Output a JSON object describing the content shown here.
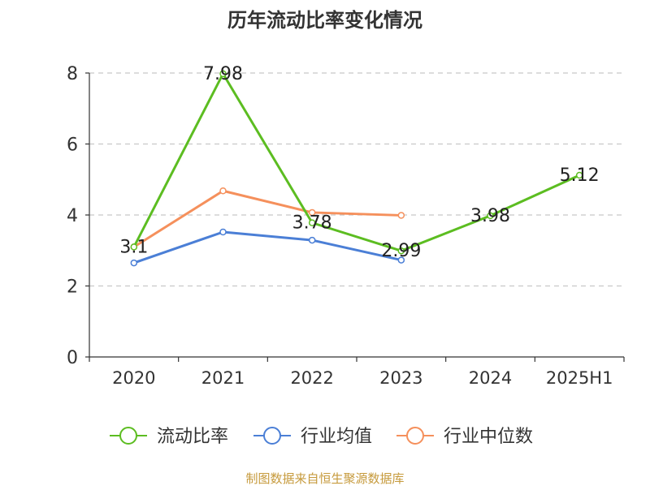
{
  "chart_data": {
    "type": "line",
    "title": "历年流动比率变化情况",
    "categories": [
      "2020",
      "2021",
      "2022",
      "2023",
      "2024",
      "2025H1"
    ],
    "ylim": [
      0,
      8
    ],
    "yticks": [
      0,
      2,
      4,
      6,
      8
    ],
    "grid": true,
    "legend_position": "bottom-center",
    "series": [
      {
        "name": "流动比率",
        "color": "#5cbd21",
        "values": [
          3.1,
          7.98,
          3.78,
          2.99,
          3.98,
          5.12
        ],
        "labels": [
          "3.1",
          "7.98",
          "3.78",
          "2.99",
          "3.98",
          "5.12"
        ]
      },
      {
        "name": "行业均值",
        "color": "#4b7fd6",
        "values": [
          2.65,
          3.52,
          3.29,
          2.73,
          null,
          null
        ]
      },
      {
        "name": "行业中位数",
        "color": "#f5905c",
        "values": [
          3.1,
          4.68,
          4.07,
          3.99,
          null,
          null
        ]
      }
    ],
    "source": "制图数据来自恒生聚源数据库"
  }
}
